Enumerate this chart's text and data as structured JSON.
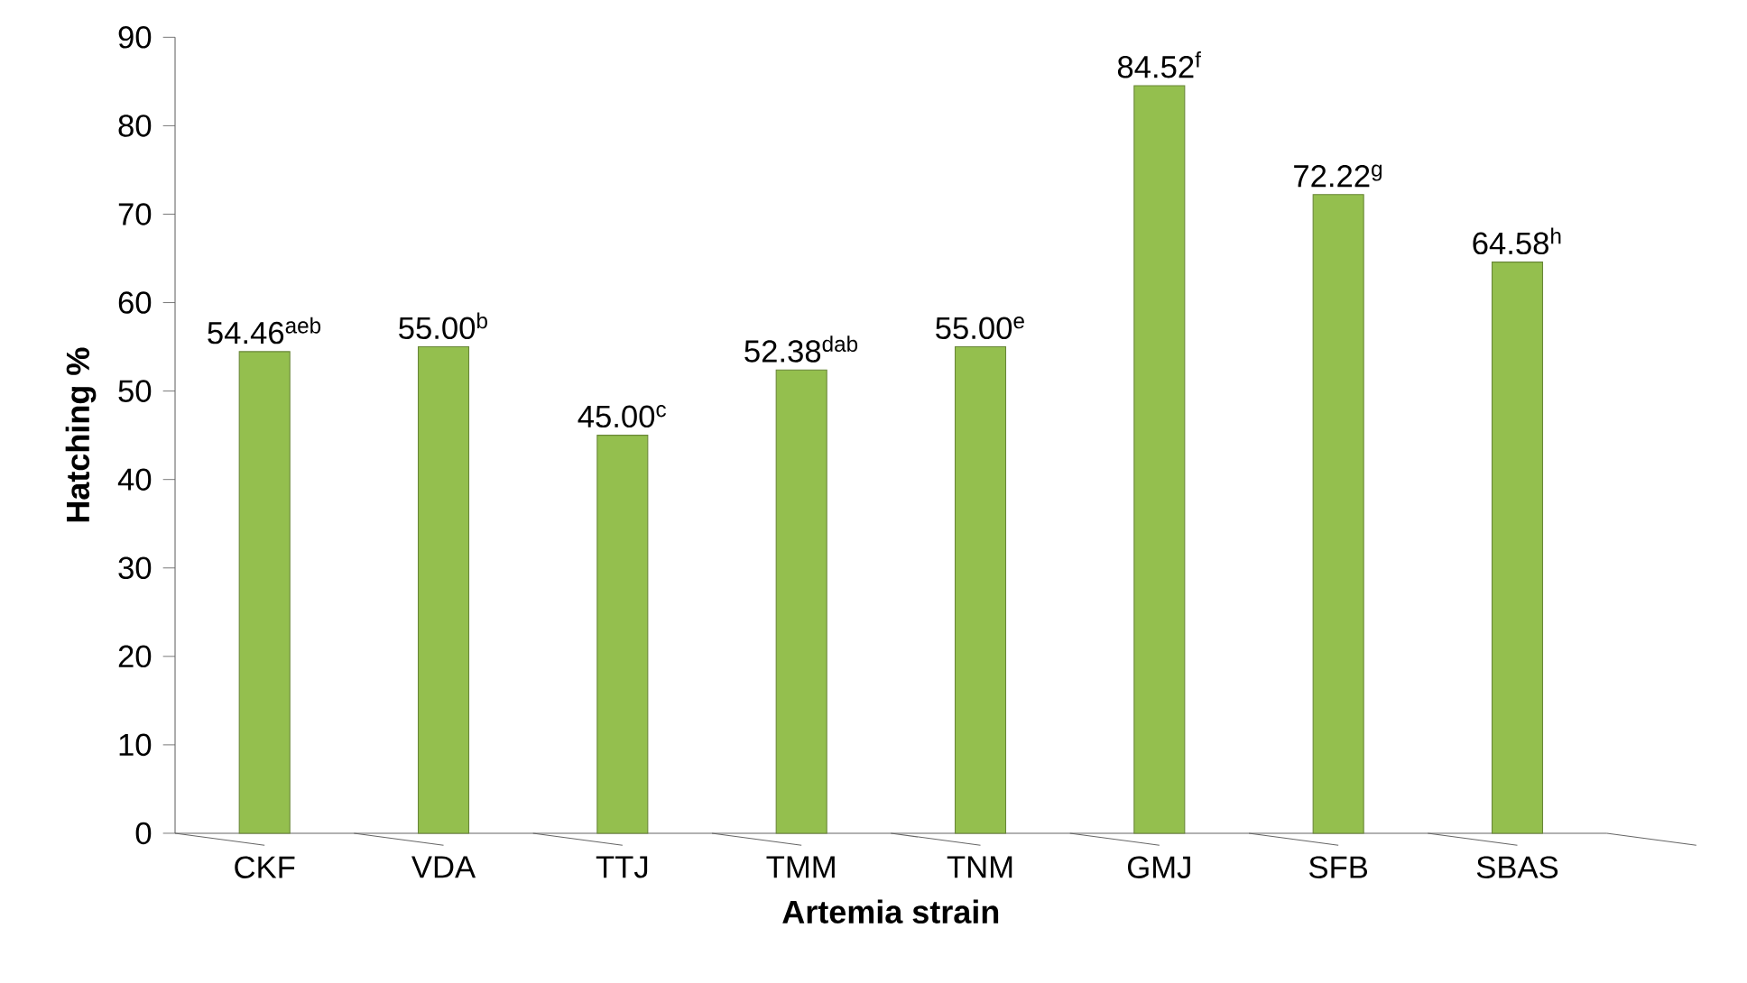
{
  "chart_data": {
    "type": "bar",
    "xlabel": "Artemia strain",
    "ylabel": "Hatching %",
    "categories": [
      "CKF",
      "VDA",
      "TTJ",
      "TMM",
      "TNM",
      "GMJ",
      "SFB",
      "SBAS"
    ],
    "values": [
      54.46,
      55.0,
      45.0,
      52.38,
      55.0,
      84.52,
      72.22,
      64.58
    ],
    "value_labels": [
      "54.46$^{aeb}$",
      "55.00$^{b}$",
      "45.00$^{c}$",
      "52.38$^{dab}$",
      "55.00$^{e}$",
      "84.52$^{f}$",
      "72.22$^{g}$",
      "64.58$^{h}$"
    ],
    "color": "#94bf4e",
    "ylim": [
      0,
      90
    ],
    "yticks": [
      0,
      10,
      20,
      30,
      40,
      50,
      60,
      70,
      80,
      90
    ],
    "grid": false
  }
}
